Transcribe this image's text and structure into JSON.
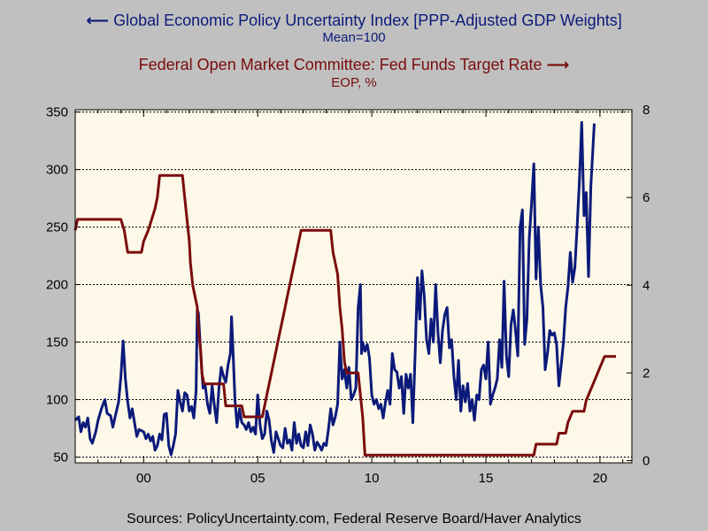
{
  "legend": {
    "series1_label": "Global Economic Policy Uncertainty Index [PPP-Adjusted GDP Weights]",
    "series1_sub": "Mean=100",
    "series2_label": "Federal Open Market Committee: Fed Funds Target Rate",
    "series2_sub": "EOP, %"
  },
  "source": "Sources:  PolicyUncertainty.com, Federal Reserve Board/Haver Analytics",
  "chart_data": {
    "type": "line",
    "grid": true,
    "background": "#fdf8e8",
    "x_ticks": [
      {
        "label": "00",
        "value": 2000
      },
      {
        "label": "05",
        "value": 2005
      },
      {
        "label": "10",
        "value": 2010
      },
      {
        "label": "15",
        "value": 2015
      },
      {
        "label": "20",
        "value": 2020
      }
    ],
    "xlim": [
      1997,
      2021.4
    ],
    "y_left": {
      "lim": [
        45,
        352
      ],
      "ticks": [
        50,
        100,
        150,
        200,
        250,
        300,
        350
      ]
    },
    "y_right": {
      "lim": [
        -0.05,
        8.0
      ],
      "ticks": [
        0,
        2,
        4,
        6,
        8
      ]
    },
    "series": [
      {
        "name": "Global Economic Policy Uncertainty Index [PPP-Adjusted GDP Weights]",
        "axis": "left",
        "color": "#0b1a7a",
        "points": [
          [
            1997.0,
            82
          ],
          [
            1997.15,
            85
          ],
          [
            1997.25,
            72
          ],
          [
            1997.35,
            80
          ],
          [
            1997.45,
            76
          ],
          [
            1997.55,
            84
          ],
          [
            1997.65,
            66
          ],
          [
            1997.75,
            62
          ],
          [
            1997.9,
            72
          ],
          [
            1998.0,
            82
          ],
          [
            1998.15,
            92
          ],
          [
            1998.3,
            100
          ],
          [
            1998.4,
            88
          ],
          [
            1998.55,
            86
          ],
          [
            1998.65,
            76
          ],
          [
            1998.75,
            85
          ],
          [
            1998.9,
            98
          ],
          [
            1999.0,
            120
          ],
          [
            1999.1,
            151
          ],
          [
            1999.2,
            118
          ],
          [
            1999.3,
            98
          ],
          [
            1999.4,
            84
          ],
          [
            1999.5,
            92
          ],
          [
            1999.6,
            80
          ],
          [
            1999.7,
            68
          ],
          [
            1999.8,
            74
          ],
          [
            1999.9,
            73
          ],
          [
            2000.0,
            72
          ],
          [
            2000.1,
            66
          ],
          [
            2000.2,
            70
          ],
          [
            2000.3,
            64
          ],
          [
            2000.4,
            68
          ],
          [
            2000.5,
            56
          ],
          [
            2000.6,
            60
          ],
          [
            2000.7,
            70
          ],
          [
            2000.8,
            65
          ],
          [
            2000.9,
            87
          ],
          [
            2001.0,
            88
          ],
          [
            2001.1,
            60
          ],
          [
            2001.2,
            52
          ],
          [
            2001.3,
            60
          ],
          [
            2001.4,
            70
          ],
          [
            2001.5,
            108
          ],
          [
            2001.6,
            98
          ],
          [
            2001.7,
            90
          ],
          [
            2001.8,
            106
          ],
          [
            2001.9,
            104
          ],
          [
            2002.0,
            90
          ],
          [
            2002.1,
            94
          ],
          [
            2002.2,
            84
          ],
          [
            2002.3,
            108
          ],
          [
            2002.35,
            178
          ],
          [
            2002.4,
            175
          ],
          [
            2002.5,
            140
          ],
          [
            2002.6,
            110
          ],
          [
            2002.7,
            112
          ],
          [
            2002.8,
            96
          ],
          [
            2002.9,
            88
          ],
          [
            2003.0,
            112
          ],
          [
            2003.1,
            95
          ],
          [
            2003.2,
            80
          ],
          [
            2003.3,
            110
          ],
          [
            2003.4,
            128
          ],
          [
            2003.5,
            120
          ],
          [
            2003.6,
            115
          ],
          [
            2003.7,
            130
          ],
          [
            2003.8,
            140
          ],
          [
            2003.85,
            172
          ],
          [
            2003.9,
            150
          ],
          [
            2004.0,
            100
          ],
          [
            2004.1,
            76
          ],
          [
            2004.2,
            92
          ],
          [
            2004.3,
            80
          ],
          [
            2004.4,
            78
          ],
          [
            2004.5,
            74
          ],
          [
            2004.6,
            80
          ],
          [
            2004.7,
            72
          ],
          [
            2004.8,
            76
          ],
          [
            2004.9,
            70
          ],
          [
            2005.0,
            104
          ],
          [
            2005.1,
            78
          ],
          [
            2005.2,
            66
          ],
          [
            2005.3,
            70
          ],
          [
            2005.4,
            90
          ],
          [
            2005.5,
            82
          ],
          [
            2005.6,
            64
          ],
          [
            2005.7,
            54
          ],
          [
            2005.8,
            72
          ],
          [
            2005.9,
            66
          ],
          [
            2006.0,
            60
          ],
          [
            2006.1,
            58
          ],
          [
            2006.2,
            75
          ],
          [
            2006.3,
            62
          ],
          [
            2006.4,
            65
          ],
          [
            2006.5,
            56
          ],
          [
            2006.6,
            80
          ],
          [
            2006.7,
            62
          ],
          [
            2006.8,
            70
          ],
          [
            2006.9,
            60
          ],
          [
            2007.0,
            58
          ],
          [
            2007.1,
            72
          ],
          [
            2007.2,
            60
          ],
          [
            2007.3,
            78
          ],
          [
            2007.4,
            70
          ],
          [
            2007.5,
            56
          ],
          [
            2007.6,
            63
          ],
          [
            2007.7,
            60
          ],
          [
            2007.8,
            56
          ],
          [
            2007.9,
            62
          ],
          [
            2008.0,
            60
          ],
          [
            2008.1,
            74
          ],
          [
            2008.2,
            92
          ],
          [
            2008.3,
            78
          ],
          [
            2008.4,
            85
          ],
          [
            2008.5,
            96
          ],
          [
            2008.6,
            150
          ],
          [
            2008.7,
            118
          ],
          [
            2008.8,
            126
          ],
          [
            2008.9,
            110
          ],
          [
            2009.0,
            128
          ],
          [
            2009.1,
            100
          ],
          [
            2009.2,
            104
          ],
          [
            2009.3,
            110
          ],
          [
            2009.4,
            180
          ],
          [
            2009.5,
            200
          ],
          [
            2009.55,
            140
          ],
          [
            2009.6,
            150
          ],
          [
            2009.7,
            142
          ],
          [
            2009.8,
            148
          ],
          [
            2009.9,
            136
          ],
          [
            2010.0,
            104
          ],
          [
            2010.1,
            96
          ],
          [
            2010.2,
            100
          ],
          [
            2010.3,
            92
          ],
          [
            2010.4,
            96
          ],
          [
            2010.5,
            84
          ],
          [
            2010.6,
            98
          ],
          [
            2010.7,
            108
          ],
          [
            2010.8,
            96
          ],
          [
            2010.9,
            140
          ],
          [
            2011.0,
            126
          ],
          [
            2011.1,
            124
          ],
          [
            2011.2,
            110
          ],
          [
            2011.3,
            120
          ],
          [
            2011.4,
            88
          ],
          [
            2011.5,
            122
          ],
          [
            2011.6,
            110
          ],
          [
            2011.7,
            122
          ],
          [
            2011.8,
            80
          ],
          [
            2011.9,
            140
          ],
          [
            2012.0,
            206
          ],
          [
            2012.1,
            170
          ],
          [
            2012.2,
            212
          ],
          [
            2012.3,
            190
          ],
          [
            2012.4,
            152
          ],
          [
            2012.5,
            140
          ],
          [
            2012.6,
            170
          ],
          [
            2012.7,
            150
          ],
          [
            2012.8,
            200
          ],
          [
            2012.9,
            158
          ],
          [
            2013.0,
            132
          ],
          [
            2013.1,
            160
          ],
          [
            2013.2,
            174
          ],
          [
            2013.3,
            180
          ],
          [
            2013.4,
            145
          ],
          [
            2013.5,
            152
          ],
          [
            2013.6,
            120
          ],
          [
            2013.7,
            100
          ],
          [
            2013.8,
            134
          ],
          [
            2013.9,
            90
          ],
          [
            2014.0,
            112
          ],
          [
            2014.1,
            98
          ],
          [
            2014.2,
            114
          ],
          [
            2014.3,
            90
          ],
          [
            2014.4,
            100
          ],
          [
            2014.5,
            82
          ],
          [
            2014.6,
            104
          ],
          [
            2014.7,
            100
          ],
          [
            2014.8,
            126
          ],
          [
            2014.9,
            130
          ],
          [
            2015.0,
            118
          ],
          [
            2015.1,
            150
          ],
          [
            2015.2,
            96
          ],
          [
            2015.3,
            104
          ],
          [
            2015.4,
            110
          ],
          [
            2015.5,
            118
          ],
          [
            2015.6,
            152
          ],
          [
            2015.7,
            128
          ],
          [
            2015.8,
            203
          ],
          [
            2015.9,
            138
          ],
          [
            2016.0,
            120
          ],
          [
            2016.1,
            165
          ],
          [
            2016.2,
            178
          ],
          [
            2016.3,
            160
          ],
          [
            2016.4,
            138
          ],
          [
            2016.5,
            250
          ],
          [
            2016.6,
            265
          ],
          [
            2016.7,
            148
          ],
          [
            2016.8,
            170
          ],
          [
            2016.9,
            240
          ],
          [
            2017.0,
            270
          ],
          [
            2017.1,
            305
          ],
          [
            2017.2,
            205
          ],
          [
            2017.3,
            250
          ],
          [
            2017.4,
            200
          ],
          [
            2017.5,
            180
          ],
          [
            2017.6,
            126
          ],
          [
            2017.7,
            140
          ],
          [
            2017.8,
            160
          ],
          [
            2017.9,
            156
          ],
          [
            2018.0,
            158
          ],
          [
            2018.1,
            148
          ],
          [
            2018.2,
            112
          ],
          [
            2018.3,
            130
          ],
          [
            2018.4,
            150
          ],
          [
            2018.5,
            180
          ],
          [
            2018.6,
            198
          ],
          [
            2018.7,
            228
          ],
          [
            2018.8,
            202
          ],
          [
            2018.9,
            215
          ],
          [
            2019.0,
            250
          ],
          [
            2019.1,
            290
          ],
          [
            2019.2,
            341
          ],
          [
            2019.3,
            260
          ],
          [
            2019.4,
            280
          ],
          [
            2019.5,
            207
          ],
          [
            2019.6,
            285
          ],
          [
            2019.75,
            340
          ]
        ]
      },
      {
        "name": "Federal Open Market Committee: Fed Funds Target Rate",
        "axis": "right",
        "color": "#7a0c0c",
        "points": [
          [
            1997.0,
            5.25
          ],
          [
            1997.1,
            5.5
          ],
          [
            1999.0,
            5.5
          ],
          [
            1999.15,
            5.25
          ],
          [
            1999.3,
            4.75
          ],
          [
            1999.9,
            4.75
          ],
          [
            2000.0,
            5.0
          ],
          [
            2000.2,
            5.25
          ],
          [
            2000.35,
            5.5
          ],
          [
            2000.5,
            5.75
          ],
          [
            2000.6,
            6.0
          ],
          [
            2000.7,
            6.5
          ],
          [
            2001.7,
            6.5
          ],
          [
            2001.8,
            6.0
          ],
          [
            2001.9,
            5.5
          ],
          [
            2002.0,
            5.0
          ],
          [
            2002.05,
            4.5
          ],
          [
            2002.15,
            4.0
          ],
          [
            2002.25,
            3.75
          ],
          [
            2002.35,
            3.5
          ],
          [
            2002.4,
            3.0
          ],
          [
            2002.5,
            2.5
          ],
          [
            2002.55,
            2.0
          ],
          [
            2002.65,
            1.75
          ],
          [
            2003.5,
            1.75
          ],
          [
            2003.6,
            1.25
          ],
          [
            2004.3,
            1.25
          ],
          [
            2004.4,
            1.0
          ],
          [
            2005.2,
            1.0
          ],
          [
            2005.3,
            1.25
          ],
          [
            2005.4,
            1.5
          ],
          [
            2005.5,
            1.75
          ],
          [
            2005.6,
            2.0
          ],
          [
            2005.7,
            2.25
          ],
          [
            2005.8,
            2.5
          ],
          [
            2005.9,
            2.75
          ],
          [
            2006.0,
            3.0
          ],
          [
            2006.1,
            3.25
          ],
          [
            2006.2,
            3.5
          ],
          [
            2006.3,
            3.75
          ],
          [
            2006.4,
            4.0
          ],
          [
            2006.5,
            4.25
          ],
          [
            2006.6,
            4.5
          ],
          [
            2006.7,
            4.75
          ],
          [
            2006.8,
            5.0
          ],
          [
            2006.9,
            5.25
          ],
          [
            2008.2,
            5.25
          ],
          [
            2008.3,
            4.75
          ],
          [
            2008.4,
            4.5
          ],
          [
            2008.5,
            4.25
          ],
          [
            2008.6,
            3.5
          ],
          [
            2008.7,
            3.0
          ],
          [
            2008.8,
            2.25
          ],
          [
            2008.9,
            2.0
          ],
          [
            2009.4,
            2.0
          ],
          [
            2009.5,
            1.5
          ],
          [
            2009.6,
            1.0
          ],
          [
            2009.7,
            0.125
          ],
          [
            2017.1,
            0.125
          ],
          [
            2017.2,
            0.375
          ],
          [
            2018.1,
            0.375
          ],
          [
            2018.2,
            0.625
          ],
          [
            2018.5,
            0.625
          ],
          [
            2018.6,
            0.875
          ],
          [
            2018.8,
            1.125
          ],
          [
            2019.3,
            1.125
          ],
          [
            2019.4,
            1.375
          ],
          [
            2019.6,
            1.625
          ],
          [
            2019.8,
            1.875
          ],
          [
            2020.0,
            2.125
          ],
          [
            2020.2,
            2.375
          ],
          [
            2020.7,
            2.375
          ]
        ]
      }
    ]
  }
}
